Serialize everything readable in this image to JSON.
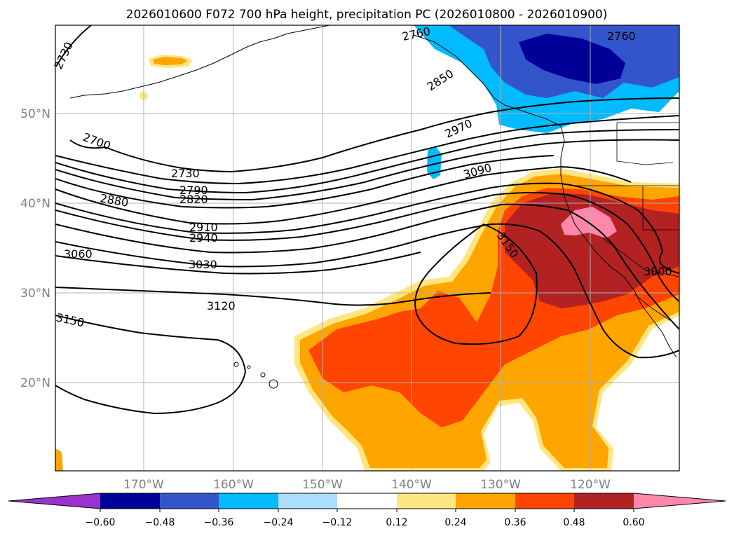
{
  "title": "2026010600 F072 700 hPa height, precipitation PC (2026010800 - 2026010900)",
  "map": {
    "lat_labels": [
      "50°N",
      "40°N",
      "30°N",
      "20°N"
    ],
    "lon_labels": [
      "170°W",
      "160°W",
      "150°W",
      "140°W",
      "130°W",
      "120°W"
    ],
    "contour_labels": [
      "2730",
      "2760",
      "2760",
      "2850",
      "2700",
      "2970",
      "2730",
      "3090",
      "2790",
      "2820",
      "2880",
      "2910",
      "2940",
      "3150",
      "3060",
      "3030",
      "3000",
      "3120",
      "3150"
    ]
  },
  "colorbar": {
    "tick_labels": [
      "−0.60",
      "−0.48",
      "−0.36",
      "−0.24",
      "−0.12",
      "0.12",
      "0.24",
      "0.36",
      "0.48",
      "0.60"
    ],
    "colors": [
      "#9933cc",
      "#000099",
      "#3355cc",
      "#00bbff",
      "#aaddff",
      "#ffffff",
      "#ffe680",
      "#ffa500",
      "#ff4500",
      "#b22222",
      "#ff88aa"
    ]
  }
}
